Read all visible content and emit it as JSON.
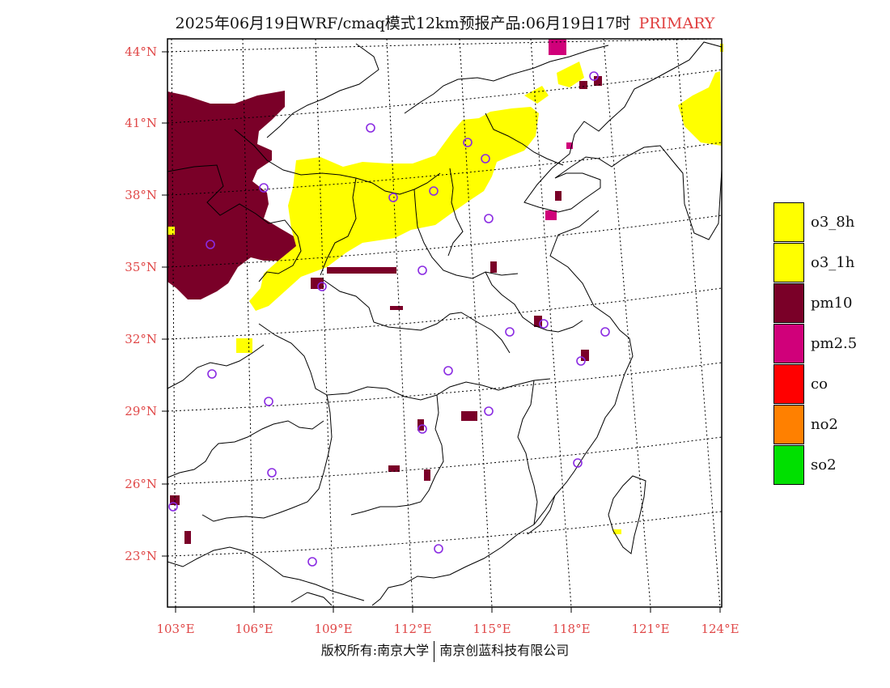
{
  "title": {
    "main": "2025年06月19日WRF/cmaq模式12km预报产品:06月19日17时",
    "highlight": "PRIMARY"
  },
  "axes": {
    "lat_labels": [
      "44°N",
      "41°N",
      "38°N",
      "35°N",
      "32°N",
      "29°N",
      "26°N",
      "23°N"
    ],
    "lon_labels": [
      "103°E",
      "106°E",
      "109°E",
      "112°E",
      "115°E",
      "118°E",
      "121°E",
      "124°E"
    ],
    "label_color": "#e04848"
  },
  "legend": [
    {
      "label": "o3_8h",
      "color": "#ffff00"
    },
    {
      "label": "o3_1h",
      "color": "#ffff00"
    },
    {
      "label": "pm10",
      "color": "#7a0028"
    },
    {
      "label": "pm2.5",
      "color": "#d0007a"
    },
    {
      "label": "co",
      "color": "#ff0000"
    },
    {
      "label": "no2",
      "color": "#ff8000"
    },
    {
      "label": "so2",
      "color": "#00e000"
    }
  ],
  "footer": {
    "left": "版权所有:南京大学",
    "right": "南京创蓝科技有限公司"
  },
  "colors": {
    "o3": "#ffff00",
    "pm10": "#7a0028",
    "pm25": "#d0007a",
    "station_marker": "#8a2be2",
    "coastline": "#000000"
  }
}
